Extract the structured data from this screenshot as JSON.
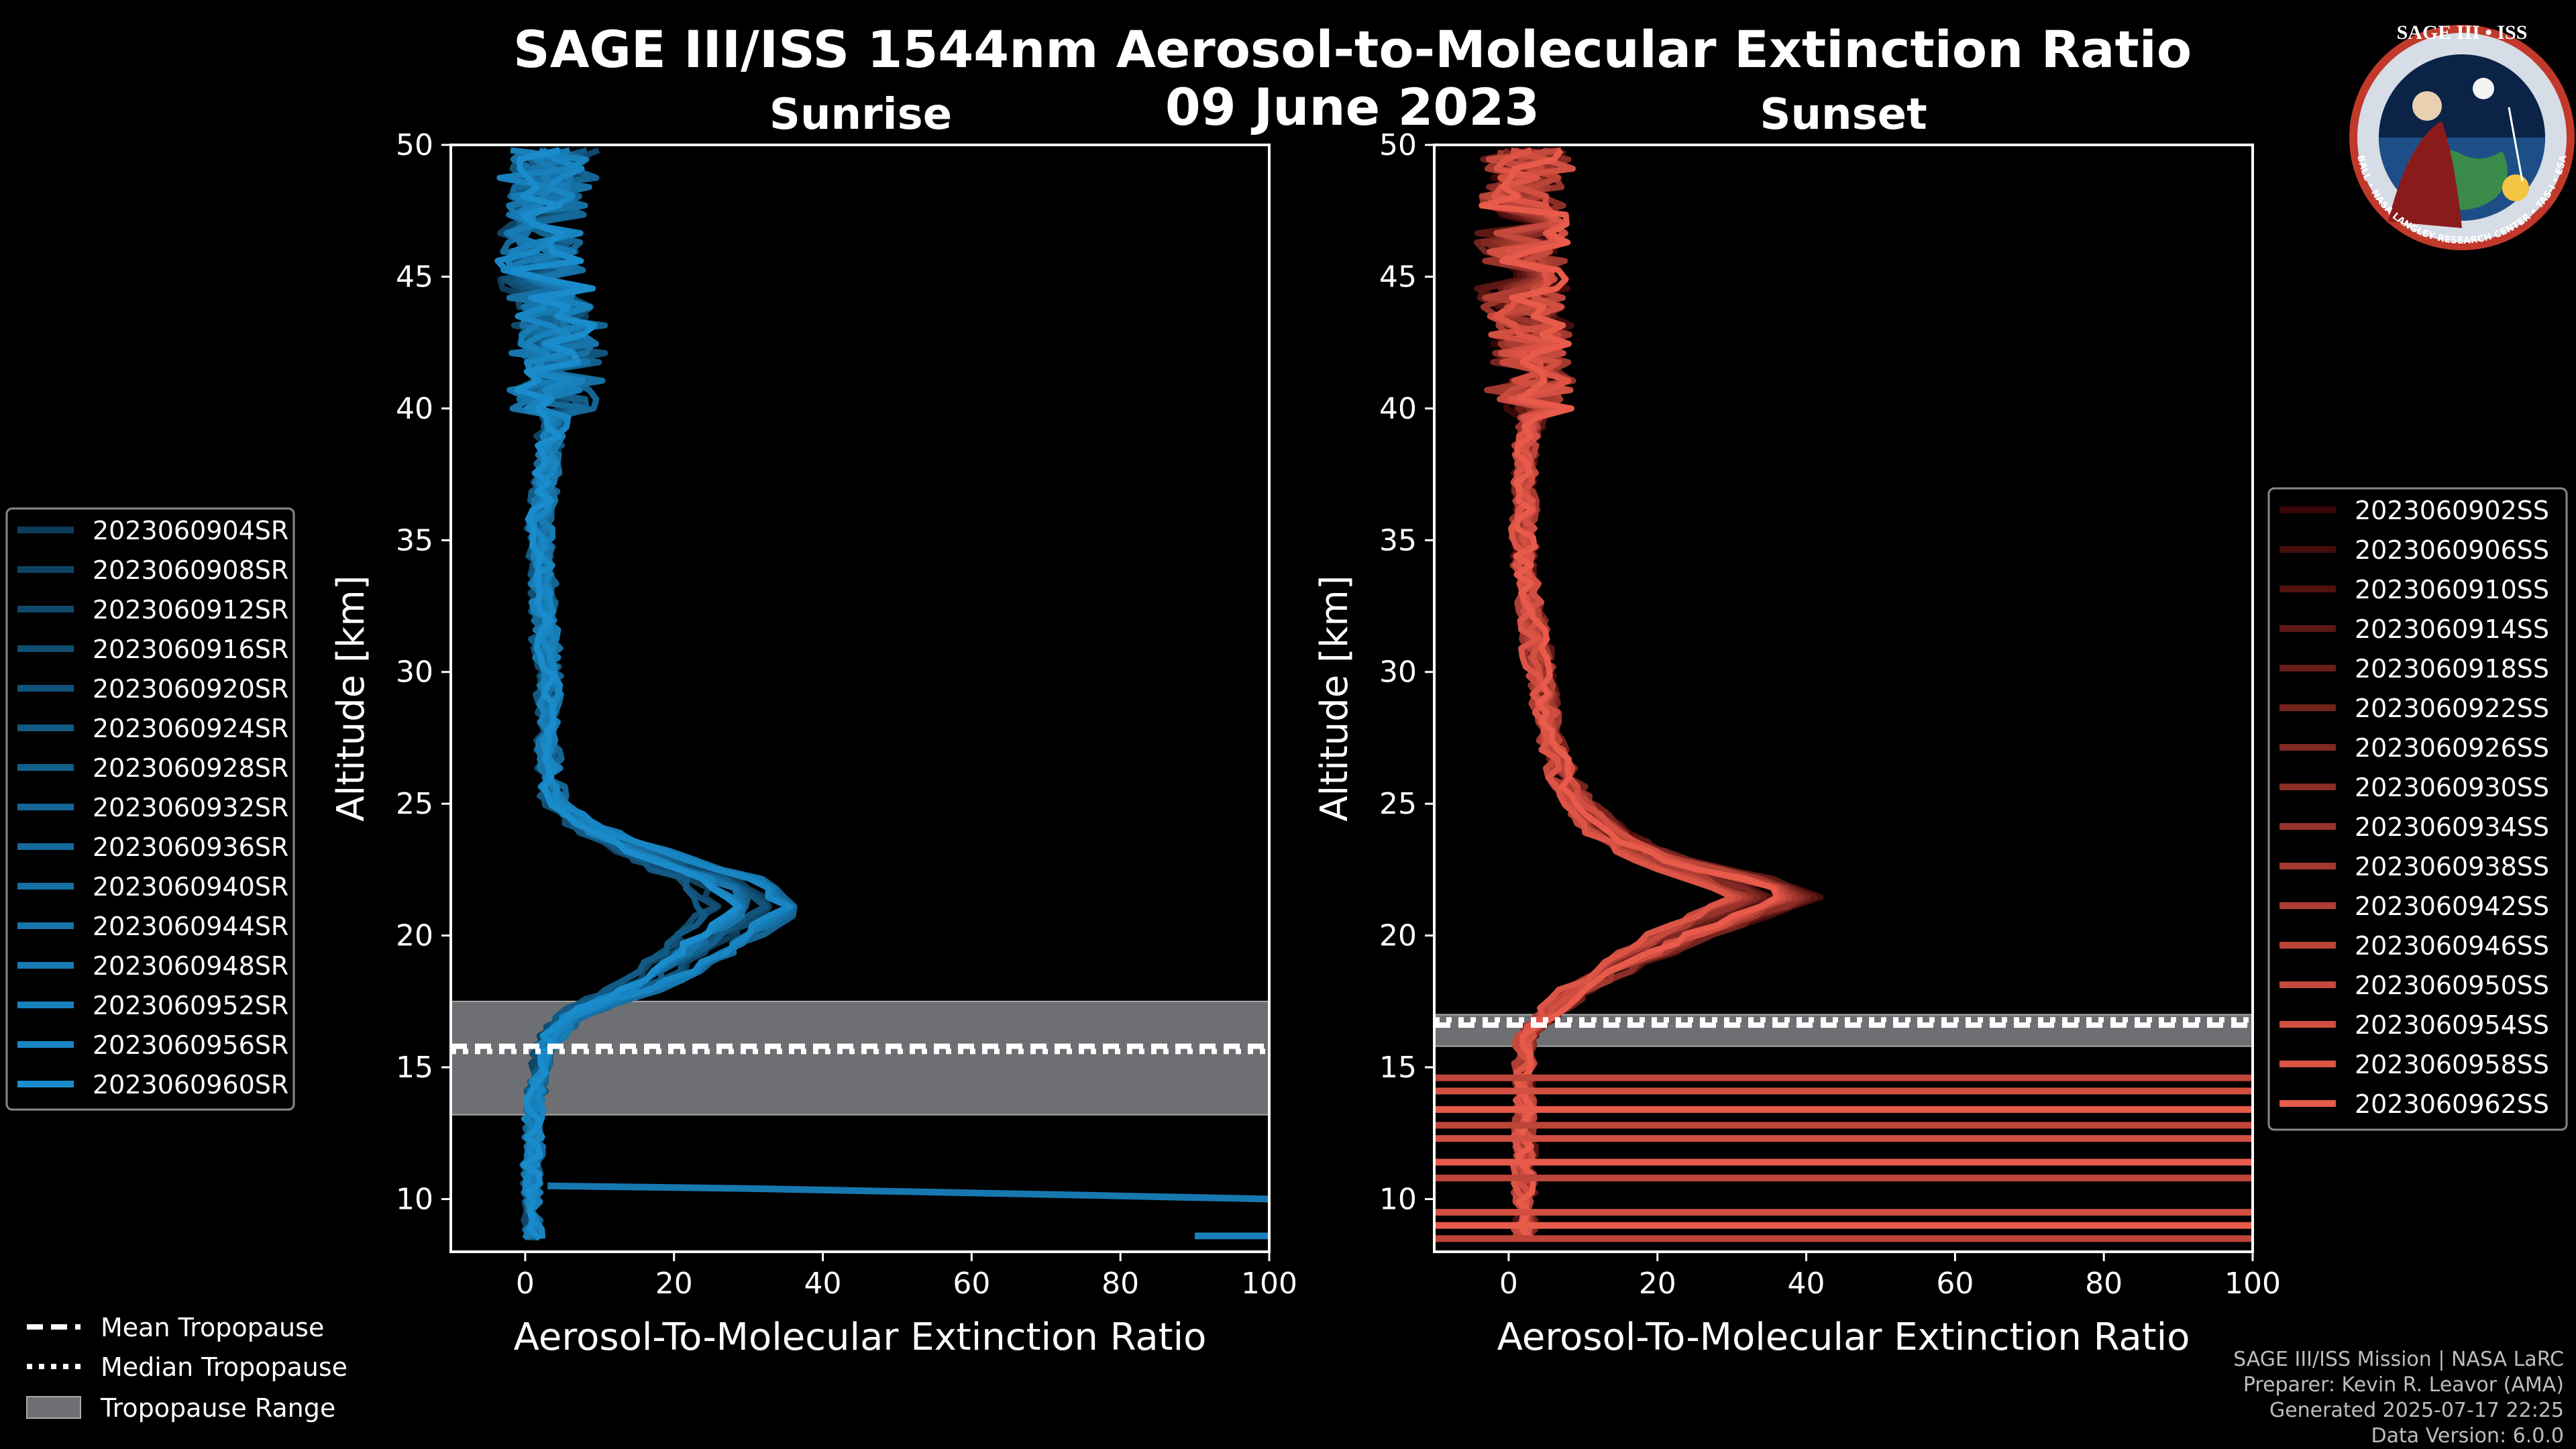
{
  "header": {
    "title": "SAGE III/ISS 1544nm Aerosol-to-Molecular Extinction Ratio",
    "date": "09 June 2023"
  },
  "logo": {
    "text": "SAGE III • ISS",
    "ring_text": "BALL • NASA LANGLEY RESEARCH CENTER • TAS-I • ESA"
  },
  "chart_data": [
    {
      "type": "line",
      "title": "Sunrise",
      "xlabel": "Aerosol-To-Molecular Extinction Ratio",
      "ylabel": "Altitude [km]",
      "xlim": [
        -10,
        100
      ],
      "ylim": [
        8,
        50
      ],
      "xticks": [
        "0",
        "20",
        "40",
        "60",
        "80",
        "100"
      ],
      "yticks": [
        "10",
        "15",
        "20",
        "25",
        "30",
        "35",
        "40",
        "45",
        "50"
      ],
      "tropopause": {
        "mean": 15.8,
        "median": 15.6,
        "range": [
          13.2,
          17.5
        ]
      },
      "profile": {
        "altitude": [
          8.5,
          10,
          12,
          13,
          14,
          15,
          16,
          17,
          17.5,
          18,
          19,
          20,
          21,
          22,
          23,
          24,
          25,
          26,
          28,
          30,
          32,
          34,
          36,
          38,
          40,
          42,
          44,
          46,
          48,
          50
        ],
        "ratio": [
          1,
          1,
          1,
          1,
          1.5,
          2,
          3,
          6,
          10,
          15,
          21,
          25,
          30,
          27,
          17,
          9,
          4,
          3,
          3,
          3,
          2.5,
          2,
          2,
          3,
          4,
          4,
          3,
          2,
          3,
          3
        ]
      },
      "anomalies": [
        {
          "altitude": [
            10.5,
            10.4,
            10.2,
            10.0
          ],
          "ratio": [
            3,
            30,
            66,
            100
          ]
        },
        {
          "altitude": [
            8.6,
            8.6
          ],
          "ratio": [
            90,
            100
          ]
        }
      ],
      "legend": [
        "2023060904SR",
        "2023060908SR",
        "2023060912SR",
        "2023060916SR",
        "2023060920SR",
        "2023060924SR",
        "2023060928SR",
        "2023060932SR",
        "2023060936SR",
        "2023060940SR",
        "2023060944SR",
        "2023060948SR",
        "2023060952SR",
        "2023060956SR",
        "2023060960SR"
      ],
      "color_dark": "#0e3d5a",
      "color_light": "#1a8ccc"
    },
    {
      "type": "line",
      "title": "Sunset",
      "xlabel": "Aerosol-To-Molecular Extinction Ratio",
      "ylabel": "Altitude [km]",
      "xlim": [
        -10,
        100
      ],
      "ylim": [
        8,
        50
      ],
      "xticks": [
        "0",
        "20",
        "40",
        "60",
        "80",
        "100"
      ],
      "yticks": [
        "10",
        "15",
        "20",
        "25",
        "30",
        "35",
        "40",
        "45",
        "50"
      ],
      "tropopause": {
        "mean": 16.6,
        "median": 16.8,
        "range": [
          15.8,
          17.0
        ]
      },
      "profile": {
        "altitude": [
          8.5,
          10,
          12,
          13,
          14,
          15,
          16,
          16.5,
          17,
          18,
          19,
          20,
          21,
          21.5,
          22,
          23,
          24,
          25,
          26,
          28,
          30,
          32,
          34,
          36,
          38,
          40,
          42,
          44,
          46,
          48,
          50
        ],
        "ratio": [
          2,
          2,
          2,
          2,
          2,
          2,
          2,
          3,
          5,
          9,
          15,
          22,
          30,
          34,
          30,
          18,
          12,
          9,
          7,
          5,
          4,
          3,
          2,
          2,
          2,
          3,
          3,
          2,
          2,
          2,
          3
        ]
      },
      "anomalies": [
        {
          "altitude": [
            14.6,
            14.6
          ],
          "ratio": [
            -10,
            100
          ]
        },
        {
          "altitude": [
            14.1,
            14.1
          ],
          "ratio": [
            -10,
            100
          ]
        },
        {
          "altitude": [
            13.4,
            13.4
          ],
          "ratio": [
            -10,
            100
          ]
        },
        {
          "altitude": [
            12.8,
            12.8
          ],
          "ratio": [
            -10,
            100
          ]
        },
        {
          "altitude": [
            12.3,
            12.3
          ],
          "ratio": [
            -10,
            100
          ]
        },
        {
          "altitude": [
            11.4,
            11.4
          ],
          "ratio": [
            -10,
            100
          ]
        },
        {
          "altitude": [
            10.8,
            10.8
          ],
          "ratio": [
            -10,
            100
          ]
        },
        {
          "altitude": [
            9.5,
            9.5
          ],
          "ratio": [
            -10,
            100
          ]
        },
        {
          "altitude": [
            9.0,
            9.0
          ],
          "ratio": [
            -10,
            100
          ]
        },
        {
          "altitude": [
            8.5,
            8.5
          ],
          "ratio": [
            -10,
            100
          ]
        }
      ],
      "legend": [
        "2023060902SS",
        "2023060906SS",
        "2023060910SS",
        "2023060914SS",
        "2023060918SS",
        "2023060922SS",
        "2023060926SS",
        "2023060930SS",
        "2023060934SS",
        "2023060938SS",
        "2023060942SS",
        "2023060946SS",
        "2023060950SS",
        "2023060954SS",
        "2023060958SS",
        "2023060962SS"
      ],
      "color_dark": "#3a0707",
      "color_light": "#e85a4a"
    }
  ],
  "tropo_legend": {
    "mean": "Mean Tropopause",
    "median": "Median Tropopause",
    "range": "Tropopause Range"
  },
  "credits": {
    "line1": "SAGE III/ISS Mission | NASA LaRC",
    "line2": "Preparer: Kevin R. Leavor (AMA)",
    "line3": "Generated 2025-07-17 22:25",
    "line4": "Data Version: 6.0.0"
  }
}
